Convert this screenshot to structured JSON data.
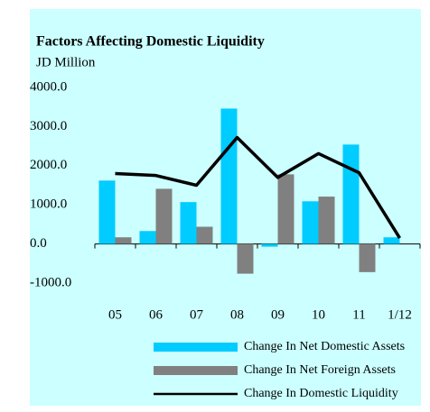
{
  "chart_data": {
    "type": "bar",
    "title": "Factors Affecting Domestic Liquidity",
    "subtitle": "JD Million",
    "categories": [
      "05",
      "06",
      "07",
      "08",
      "09",
      "10",
      "11",
      "1/12"
    ],
    "series": [
      {
        "name": "Change In Net Domestic Assets",
        "color": "#00ccff",
        "values": [
          1620,
          330,
          1070,
          3460,
          -70,
          1090,
          2540,
          170
        ]
      },
      {
        "name": "Change In Net Foreign Assets",
        "color": "#808080",
        "values": [
          170,
          1410,
          440,
          -760,
          1780,
          1210,
          -720,
          0
        ]
      },
      {
        "name": "Change In Domestic Liquidity",
        "color": "#000000",
        "type": "line",
        "values": [
          1800,
          1750,
          1500,
          2720,
          1700,
          2310,
          1820,
          150
        ]
      }
    ],
    "ylim": [
      -1000,
      4000
    ],
    "yticks": [
      {
        "value": 4000,
        "label": "4000.0"
      },
      {
        "value": 3000,
        "label": "3000.0"
      },
      {
        "value": 2000,
        "label": "2000.0"
      },
      {
        "value": 1000,
        "label": "1000.0"
      },
      {
        "value": 0,
        "label": "0.0"
      },
      {
        "value": -1000,
        "label": "-1000.0"
      }
    ],
    "background": "#ccffff"
  }
}
